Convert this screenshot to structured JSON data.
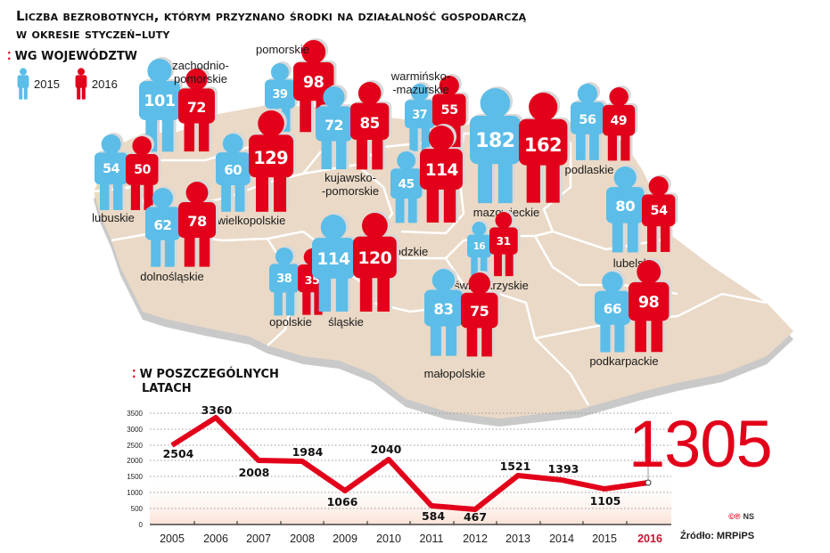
{
  "title": {
    "line1": "Liczba bezrobotnych, którym przyznano środki na działalność gospodarczą",
    "line2": "w okresie styczeń–luty"
  },
  "colors": {
    "y2015": "#5bbde8",
    "y2016": "#e2001a",
    "map_fill": "#ead9c6",
    "map_edge": "#c8c8c8",
    "border": "#ffffff",
    "accent": "#e2001a"
  },
  "map_section": {
    "label": "WG WOJEWÓDZTW",
    "legend": [
      {
        "label": "2015",
        "color": "#5bbde8"
      },
      {
        "label": "2016",
        "color": "#e2001a"
      }
    ]
  },
  "regions": [
    {
      "name": "zachodnio-\npomorskie",
      "v2015": 101,
      "v2016": 72
    },
    {
      "name": "pomorskie",
      "v2015": 39,
      "v2016": 98
    },
    {
      "name": "warmińsko-\n-mazurskie",
      "v2015": 37,
      "v2016": 55
    },
    {
      "name": "podlaskie",
      "v2015": 56,
      "v2016": 49
    },
    {
      "name": "lubuskie",
      "v2015": 54,
      "v2016": 50
    },
    {
      "name": "wielkopolskie",
      "v2015": 60,
      "v2016": 129
    },
    {
      "name": "kujawsko-\n-pomorskie",
      "v2015": 72,
      "v2016": 85
    },
    {
      "name": "mazowieckie",
      "v2015": 182,
      "v2016": 162
    },
    {
      "name": "łódzkie",
      "v2015": 45,
      "v2016": 114
    },
    {
      "name": "lubelskie",
      "v2015": 80,
      "v2016": 54
    },
    {
      "name": "dolnośląskie",
      "v2015": 62,
      "v2016": 78
    },
    {
      "name": "opolskie",
      "v2015": 38,
      "v2016": 35
    },
    {
      "name": "śląskie",
      "v2015": 114,
      "v2016": 120
    },
    {
      "name": "świętokrzyskie",
      "v2015": 16,
      "v2016": 31
    },
    {
      "name": "małopolskie",
      "v2015": 83,
      "v2016": 75
    },
    {
      "name": "podkarpackie",
      "v2015": 66,
      "v2016": 98
    }
  ],
  "chart_section": {
    "label_line1": "W POSZCZEGÓLNYCH",
    "label_line2": "LATACH"
  },
  "highlight": {
    "value": "1305",
    "year": "2016"
  },
  "credits": {
    "symbols": "©℗",
    "author": "NS",
    "source": "Źródło: MRPiPS"
  },
  "chart_data": [
    {
      "type": "bar",
      "title": "Liczba bezrobotnych, którym przyznano środki na działalność gospodarczą w okresie styczeń–luty — wg województw",
      "categories": [
        "zachodniopomorskie",
        "pomorskie",
        "warmińsko-mazurskie",
        "podlaskie",
        "lubuskie",
        "wielkopolskie",
        "kujawsko-pomorskie",
        "mazowieckie",
        "łódzkie",
        "lubelskie",
        "dolnośląskie",
        "opolskie",
        "śląskie",
        "świętokrzyskie",
        "małopolskie",
        "podkarpackie"
      ],
      "series": [
        {
          "name": "2015",
          "color": "#5bbde8",
          "values": [
            101,
            39,
            37,
            56,
            54,
            60,
            72,
            182,
            45,
            80,
            62,
            38,
            114,
            16,
            83,
            66
          ]
        },
        {
          "name": "2016",
          "color": "#e2001a",
          "values": [
            72,
            98,
            55,
            49,
            50,
            129,
            85,
            162,
            114,
            54,
            78,
            35,
            120,
            31,
            75,
            98
          ]
        }
      ],
      "legend_position": "top-left",
      "representation": "pictogram figures on map of Poland, size proportional to value"
    },
    {
      "type": "line",
      "title": "W poszczególnych latach",
      "x": [
        "2005",
        "2006",
        "2007",
        "2008",
        "2009",
        "2010",
        "2011",
        "2012",
        "2013",
        "2014",
        "2015",
        "2016"
      ],
      "series": [
        {
          "name": "Liczba bezrobotnych",
          "color": "#e2001a",
          "values": [
            2504,
            3360,
            2008,
            1984,
            1066,
            2040,
            584,
            467,
            1521,
            1393,
            1105,
            1305
          ]
        }
      ],
      "data_labels": [
        "2504",
        "3360",
        "2008",
        "1984",
        "1066",
        "2040",
        "584",
        "467",
        "1521",
        "1393",
        "1105",
        "1305"
      ],
      "yticks": [
        0,
        500,
        1000,
        1500,
        2000,
        2500,
        3000,
        3500
      ],
      "ylim": [
        0,
        3500
      ],
      "xlabel": "",
      "ylabel": "",
      "grid": "horizontal dotted",
      "highlight": {
        "x": "2016",
        "value": 1305
      }
    }
  ]
}
